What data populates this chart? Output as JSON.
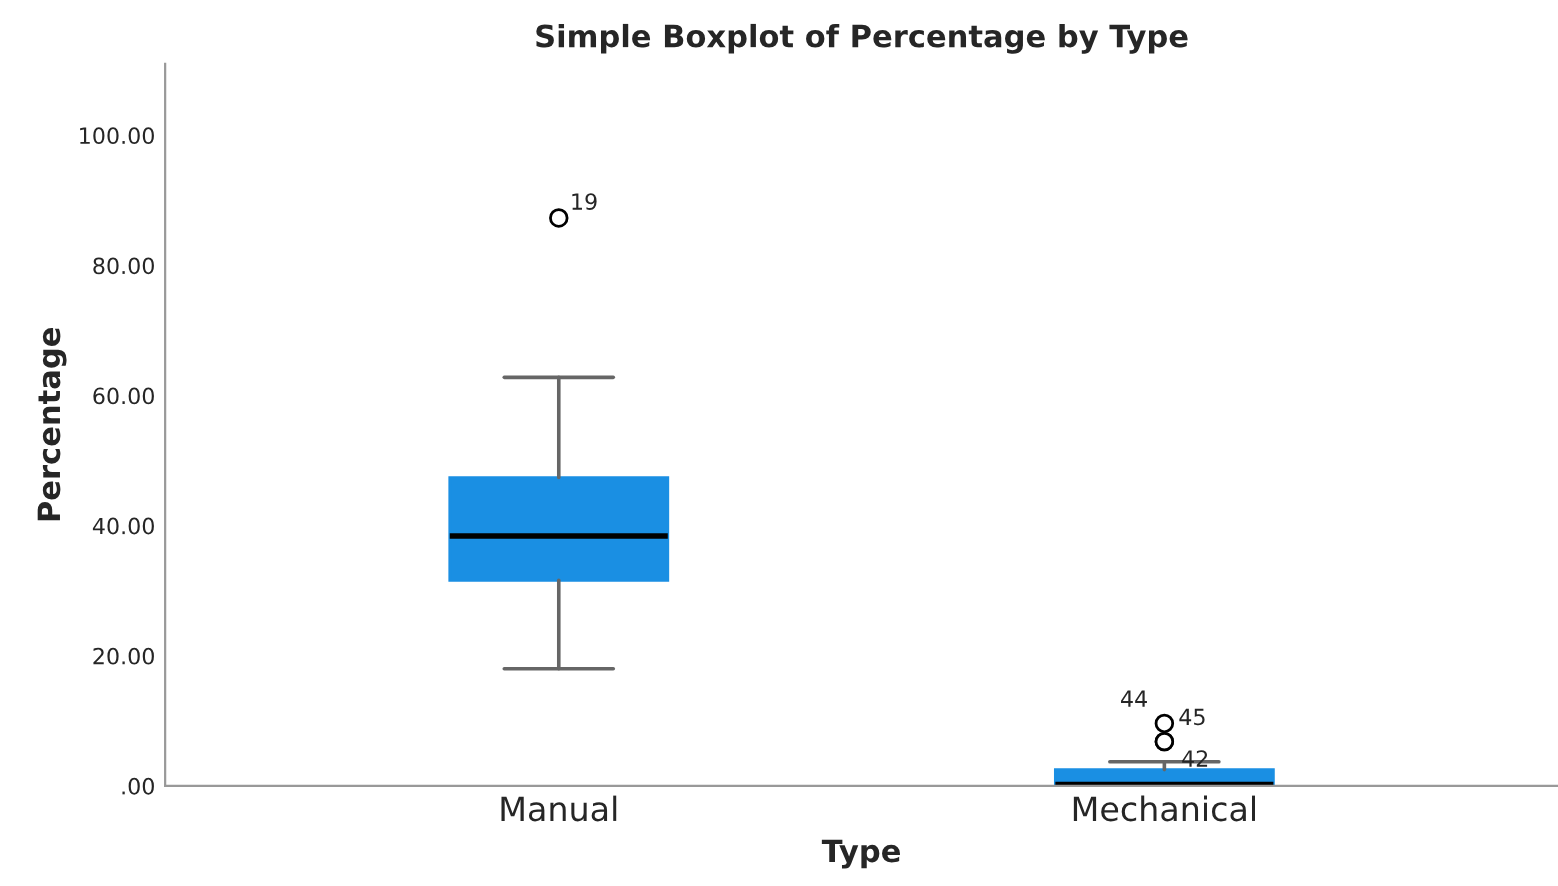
{
  "chart_data": {
    "type": "box",
    "title": "Simple Boxplot of Percentage by Type",
    "xlabel": "Type",
    "ylabel": "Percentage",
    "categories": [
      "Manual",
      "Mechanical"
    ],
    "boxes": [
      {
        "low": 18.0,
        "q1": 31.6,
        "median": 38.4,
        "q3": 47.4,
        "high": 62.8,
        "outliers": [
          87.3
        ]
      },
      {
        "low": 0.0,
        "q1": 0.0,
        "median": 0.2,
        "q3": 2.5,
        "high": 3.7,
        "outliers": [
          9.6,
          6.8,
          6.8
        ]
      }
    ],
    "color": "#1a8fe3",
    "ylim": [
      0,
      111
    ],
    "yticks": [
      {
        "value": 0,
        "label": ".00"
      },
      {
        "value": 20,
        "label": "20.00"
      },
      {
        "value": 40,
        "label": "40.00"
      },
      {
        "value": 60,
        "label": "60.00"
      },
      {
        "value": 80,
        "label": "80.00"
      },
      {
        "value": 100,
        "label": "100.00"
      }
    ],
    "annotations": [
      "19",
      "44",
      "45",
      "42"
    ],
    "grid": false
  }
}
